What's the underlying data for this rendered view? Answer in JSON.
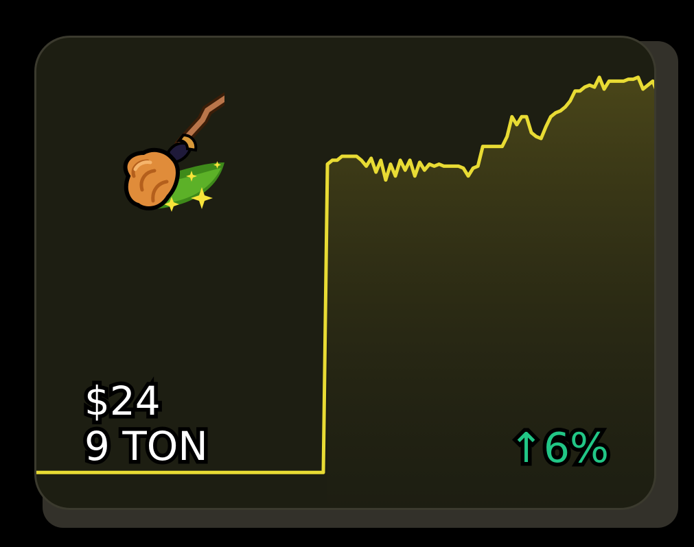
{
  "asset": {
    "icon": "broom-icon",
    "price_usd": "$24",
    "price_ton": "9 TON",
    "change_arrow": "↑",
    "change_percent": "6%"
  },
  "colors": {
    "line": "#e8db34",
    "fill_top": "#4a4619",
    "card_bg": "#1d1e12",
    "change": "#21c686",
    "price_text": "#ffffff"
  },
  "chart_data": {
    "type": "area",
    "title": "",
    "xlabel": "",
    "ylabel": "",
    "x": [
      0,
      1,
      2,
      3,
      4,
      5,
      6,
      7,
      8,
      9,
      10,
      11,
      12,
      13,
      14,
      15,
      16,
      17,
      18,
      19,
      20,
      21,
      22,
      23,
      24,
      25,
      26,
      27,
      28,
      29,
      30,
      31,
      32,
      33,
      34,
      35,
      36,
      37,
      38,
      39,
      40,
      41,
      42,
      43,
      44,
      45,
      46,
      47,
      48,
      49,
      50,
      51,
      52,
      53,
      54,
      55,
      56,
      57,
      58,
      59,
      60,
      61,
      62,
      63,
      64,
      65,
      66,
      67,
      68,
      69,
      70,
      71,
      72,
      73,
      74,
      75
    ],
    "values": [
      2.0,
      2.0,
      2.0,
      2.0,
      2.0,
      2.0,
      17.6,
      17.8,
      17.8,
      18.0,
      18.0,
      18.0,
      18.0,
      17.8,
      17.5,
      17.9,
      17.2,
      17.8,
      16.8,
      17.6,
      17.0,
      17.8,
      17.3,
      17.8,
      17.0,
      17.7,
      17.3,
      17.6,
      17.5,
      17.6,
      17.5,
      17.5,
      17.5,
      17.5,
      17.4,
      17.0,
      17.4,
      17.5,
      18.5,
      18.5,
      18.5,
      18.5,
      18.5,
      19.0,
      20.0,
      19.6,
      20.0,
      20.0,
      19.2,
      19.0,
      18.9,
      19.5,
      20.0,
      20.2,
      20.3,
      20.5,
      20.8,
      21.3,
      21.3,
      21.5,
      21.6,
      21.5,
      22.0,
      21.4,
      21.8,
      21.8,
      21.8,
      21.8,
      21.9,
      21.9,
      22.0,
      21.4,
      21.6,
      21.8,
      21.2,
      21.4
    ],
    "ylim": [
      0,
      24
    ],
    "grid": false,
    "legend": "none"
  }
}
